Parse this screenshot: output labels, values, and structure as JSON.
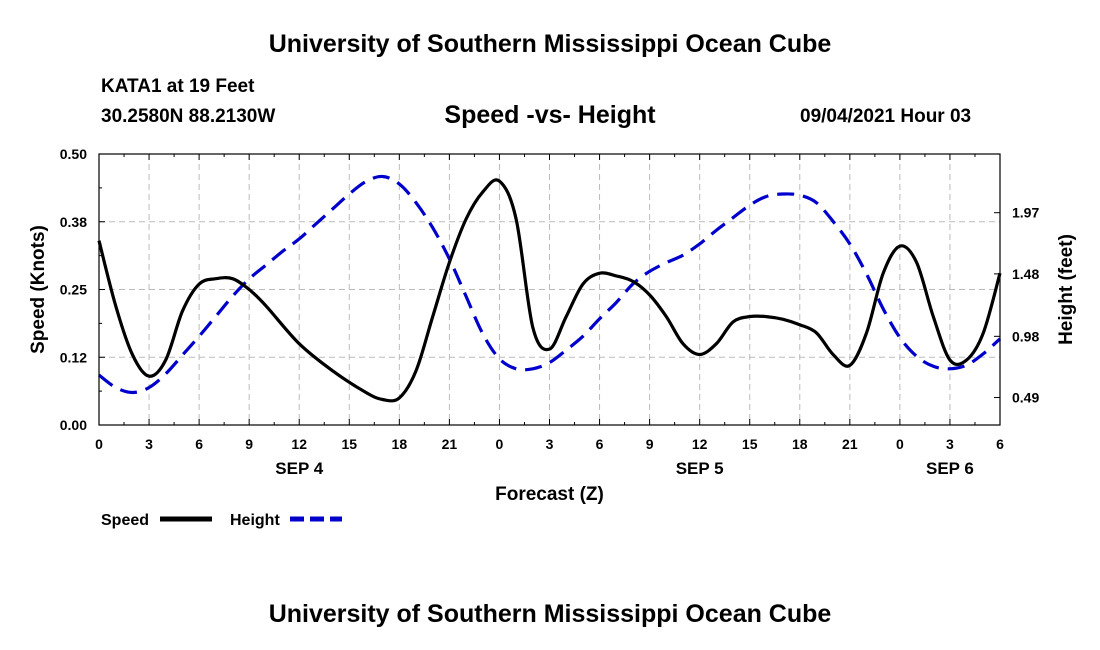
{
  "header": {
    "title": "University of Southern Mississippi Ocean Cube",
    "station": "KATA1 at 19 Feet",
    "coords": "30.2580N  88.2130W",
    "subtitle": "Speed -vs- Height",
    "datetime": "09/04/2021 Hour 03"
  },
  "footer": {
    "title": "University of Southern Mississippi Ocean Cube"
  },
  "legend": {
    "speed": "Speed",
    "height": "Height"
  },
  "colors": {
    "speed": "#000000",
    "height": "#0000cc",
    "grid": "#bbbbbb"
  },
  "chart_data": {
    "type": "line",
    "title": "Speed -vs- Height",
    "xlabel": "Forecast (Z)",
    "ylabel": "Speed (Knots)",
    "y2label": "Height (feet)",
    "xlim": [
      0,
      54
    ],
    "ylim": [
      0,
      0.5
    ],
    "y2lim": [
      0.27,
      2.44
    ],
    "x_ticks": [
      0,
      3,
      6,
      9,
      12,
      15,
      18,
      21,
      24,
      27,
      30,
      33,
      36,
      39,
      42,
      45,
      48,
      51,
      54
    ],
    "x_tick_labels": [
      "0",
      "3",
      "6",
      "9",
      "12",
      "15",
      "18",
      "21",
      "0",
      "3",
      "6",
      "9",
      "12",
      "15",
      "18",
      "21",
      "0",
      "3",
      "6"
    ],
    "y_ticks": [
      0.0,
      0.125,
      0.25,
      0.375,
      0.5
    ],
    "y_tick_labels": [
      "0.00",
      "0.12",
      "0.25",
      "0.38",
      "0.50"
    ],
    "y2_ticks": [
      0.49,
      0.98,
      1.48,
      1.97
    ],
    "y2_tick_labels": [
      "0.49",
      "0.98",
      "1.48",
      "1.97"
    ],
    "day_labels": [
      {
        "x": 12,
        "label": "SEP 4"
      },
      {
        "x": 36,
        "label": "SEP 5"
      },
      {
        "x": 51,
        "label": "SEP 6"
      }
    ],
    "grid": true,
    "legend_position": "bottom-left",
    "series": [
      {
        "name": "Speed",
        "axis": "left",
        "style": "solid",
        "color": "#000000",
        "x": [
          0,
          1,
          2,
          3,
          4,
          5,
          6,
          7,
          8,
          9,
          10,
          12,
          14,
          16,
          17,
          18,
          19,
          20,
          21,
          22,
          23,
          24,
          25,
          26,
          27,
          28,
          29,
          30,
          31,
          32,
          33,
          34,
          35,
          36,
          37,
          38,
          39,
          40,
          41,
          42,
          43,
          44,
          45,
          46,
          47,
          48,
          49,
          50,
          51,
          52,
          53,
          54
        ],
        "values": [
          0.34,
          0.22,
          0.13,
          0.09,
          0.12,
          0.21,
          0.26,
          0.27,
          0.27,
          0.25,
          0.22,
          0.15,
          0.1,
          0.06,
          0.047,
          0.05,
          0.1,
          0.2,
          0.3,
          0.38,
          0.43,
          0.45,
          0.38,
          0.18,
          0.14,
          0.2,
          0.26,
          0.28,
          0.275,
          0.265,
          0.24,
          0.2,
          0.15,
          0.13,
          0.15,
          0.19,
          0.2,
          0.2,
          0.195,
          0.185,
          0.17,
          0.13,
          0.11,
          0.17,
          0.28,
          0.33,
          0.3,
          0.2,
          0.12,
          0.12,
          0.17,
          0.28
        ]
      },
      {
        "name": "Height",
        "axis": "right",
        "style": "dashed",
        "color": "#0000cc",
        "x": [
          0,
          1,
          2,
          3,
          4,
          5,
          6,
          7,
          8,
          9,
          10,
          11,
          12,
          13,
          14,
          15,
          16,
          17,
          18,
          19,
          20,
          21,
          22,
          23,
          24,
          25,
          26,
          27,
          28,
          29,
          30,
          31,
          32,
          33,
          34,
          35,
          36,
          37,
          38,
          39,
          40,
          41,
          42,
          43,
          44,
          45,
          46,
          47,
          48,
          49,
          50,
          51,
          52,
          53,
          54
        ],
        "values": [
          0.67,
          0.57,
          0.53,
          0.57,
          0.68,
          0.83,
          0.98,
          1.14,
          1.3,
          1.44,
          1.55,
          1.66,
          1.76,
          1.88,
          2.0,
          2.12,
          2.22,
          2.26,
          2.2,
          2.05,
          1.85,
          1.6,
          1.3,
          1.0,
          0.8,
          0.72,
          0.72,
          0.77,
          0.87,
          0.98,
          1.12,
          1.25,
          1.4,
          1.5,
          1.57,
          1.63,
          1.72,
          1.83,
          1.93,
          2.03,
          2.1,
          2.12,
          2.11,
          2.05,
          1.9,
          1.72,
          1.48,
          1.2,
          0.97,
          0.82,
          0.74,
          0.72,
          0.75,
          0.84,
          0.96
        ]
      }
    ]
  }
}
